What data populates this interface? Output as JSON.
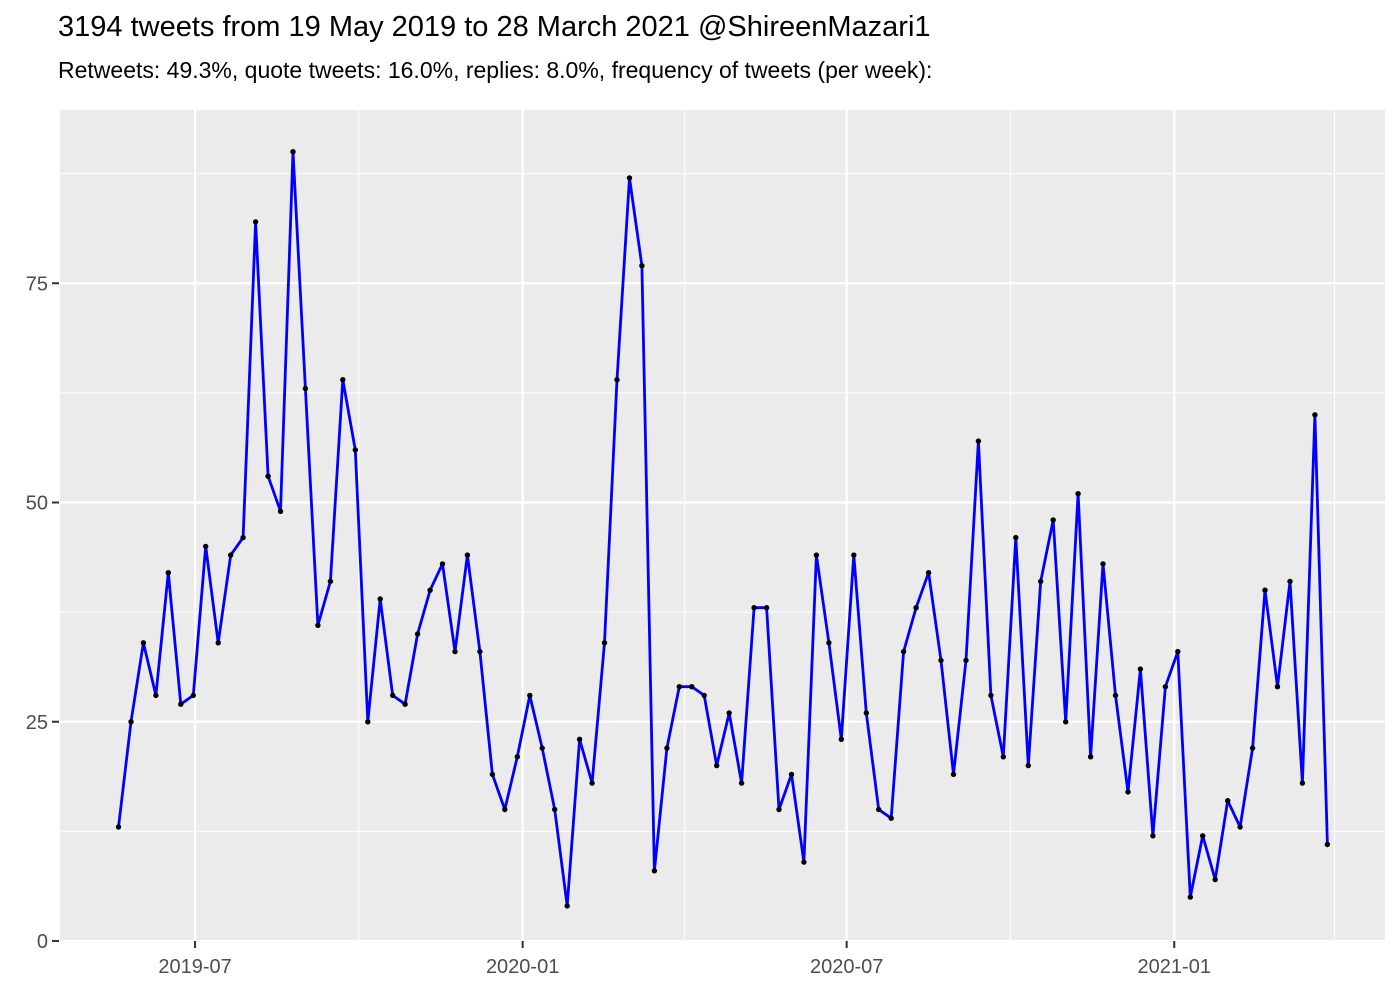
{
  "header": {
    "title": "3194 tweets from 19 May 2019 to 28 March 2021 @ShireenMazari1",
    "subtitle": "Retweets: 49.3%, quote tweets: 16.0%, replies: 8.0%, frequency of tweets (per week):"
  },
  "chart_data": {
    "type": "line",
    "title": "3194 tweets from 19 May 2019 to 28 March 2021 @ShireenMazari1",
    "subtitle": "Retweets: 49.3%, quote tweets: 16.0%, replies: 8.0%, frequency of tweets (per week):",
    "series_name": "tweets per week",
    "xlabel": "",
    "ylabel": "",
    "x": [
      "2019-05-19",
      "2019-05-26",
      "2019-06-02",
      "2019-06-09",
      "2019-06-16",
      "2019-06-23",
      "2019-06-30",
      "2019-07-07",
      "2019-07-14",
      "2019-07-21",
      "2019-07-28",
      "2019-08-04",
      "2019-08-11",
      "2019-08-18",
      "2019-08-25",
      "2019-09-01",
      "2019-09-08",
      "2019-09-15",
      "2019-09-22",
      "2019-09-29",
      "2019-10-06",
      "2019-10-13",
      "2019-10-20",
      "2019-10-27",
      "2019-11-03",
      "2019-11-10",
      "2019-11-17",
      "2019-11-24",
      "2019-12-01",
      "2019-12-08",
      "2019-12-15",
      "2019-12-22",
      "2019-12-29",
      "2020-01-05",
      "2020-01-12",
      "2020-01-19",
      "2020-01-26",
      "2020-02-02",
      "2020-02-09",
      "2020-02-16",
      "2020-02-23",
      "2020-03-01",
      "2020-03-08",
      "2020-03-15",
      "2020-03-22",
      "2020-03-29",
      "2020-04-05",
      "2020-04-12",
      "2020-04-19",
      "2020-04-26",
      "2020-05-03",
      "2020-05-10",
      "2020-05-17",
      "2020-05-24",
      "2020-05-31",
      "2020-06-07",
      "2020-06-14",
      "2020-06-21",
      "2020-06-28",
      "2020-07-05",
      "2020-07-12",
      "2020-07-19",
      "2020-07-26",
      "2020-08-02",
      "2020-08-09",
      "2020-08-16",
      "2020-08-23",
      "2020-08-30",
      "2020-09-06",
      "2020-09-13",
      "2020-09-20",
      "2020-09-27",
      "2020-10-04",
      "2020-10-11",
      "2020-10-18",
      "2020-10-25",
      "2020-11-01",
      "2020-11-08",
      "2020-11-15",
      "2020-11-22",
      "2020-11-29",
      "2020-12-06",
      "2020-12-13",
      "2020-12-20",
      "2020-12-27",
      "2021-01-03",
      "2021-01-10",
      "2021-01-17",
      "2021-01-24",
      "2021-01-31",
      "2021-02-07",
      "2021-02-14",
      "2021-02-21",
      "2021-02-28",
      "2021-03-07",
      "2021-03-14",
      "2021-03-21",
      "2021-03-28"
    ],
    "values": [
      13,
      25,
      34,
      28,
      42,
      27,
      28,
      45,
      34,
      44,
      46,
      82,
      53,
      49,
      90,
      63,
      36,
      41,
      64,
      56,
      25,
      39,
      28,
      27,
      35,
      40,
      43,
      33,
      44,
      33,
      19,
      15,
      21,
      28,
      22,
      15,
      4,
      23,
      18,
      34,
      64,
      87,
      77,
      8,
      22,
      29,
      29,
      28,
      20,
      26,
      18,
      38,
      38,
      15,
      19,
      9,
      44,
      34,
      23,
      44,
      26,
      15,
      14,
      33,
      38,
      42,
      32,
      19,
      32,
      57,
      28,
      21,
      46,
      20,
      41,
      48,
      25,
      51,
      21,
      43,
      28,
      17,
      31,
      12,
      29,
      33,
      5,
      12,
      7,
      16,
      13,
      22,
      40,
      29,
      41,
      18,
      60,
      11
    ],
    "ylim": [
      0,
      94
    ],
    "yticks": [
      0,
      25,
      50,
      75
    ],
    "y_minor": [
      12.5,
      37.5,
      62.5,
      87.5
    ],
    "xticks": [
      {
        "date": "2019-07-01",
        "label": "2019-07"
      },
      {
        "date": "2020-01-01",
        "label": "2020-01"
      },
      {
        "date": "2020-07-01",
        "label": "2020-07"
      },
      {
        "date": "2021-01-01",
        "label": "2021-01"
      }
    ],
    "x_minor_dates": [
      "2019-10-01",
      "2020-04-01",
      "2020-10-01",
      "2021-04-01"
    ],
    "grid": true,
    "legend": false,
    "colors": {
      "line": "#0000FF",
      "point": "#000000",
      "panel_background": "#EBEBEB",
      "grid": "#FFFFFF",
      "axis_text": "#4D4D4D",
      "tick_mark": "#333333",
      "title_text": "#000000",
      "page_background": "#FFFFFF"
    }
  }
}
